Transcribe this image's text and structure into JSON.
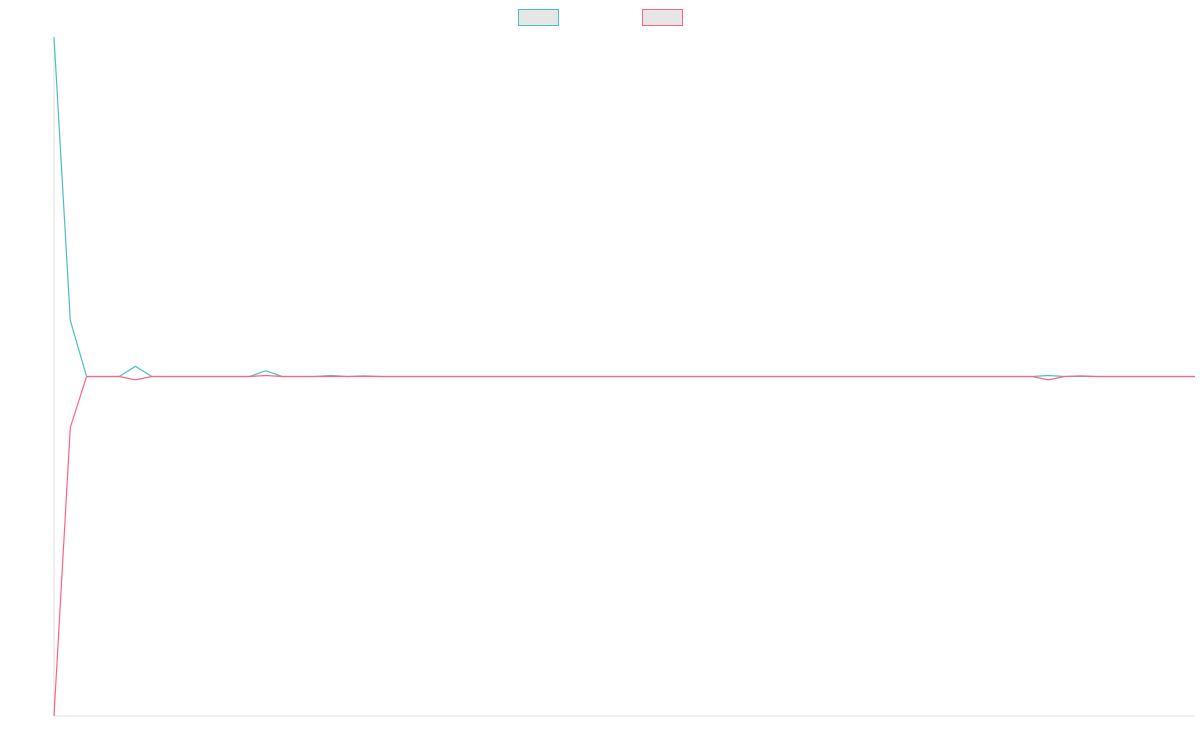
{
  "chart_data": {
    "type": "line",
    "title": "",
    "xlabel": "",
    "ylabel": "",
    "x": [
      0,
      1,
      2,
      3,
      4,
      5,
      6,
      7,
      8,
      9,
      10,
      11,
      12,
      13,
      14,
      15,
      16,
      17,
      18,
      19,
      20,
      21,
      22,
      23,
      24,
      25,
      26,
      27,
      28,
      29,
      30,
      31,
      32,
      33,
      34,
      35,
      36,
      37,
      38,
      39,
      40,
      41,
      42,
      43,
      44,
      45,
      46,
      47,
      48,
      49,
      50,
      51,
      52,
      53,
      54,
      55,
      56,
      57,
      58,
      59,
      60,
      61,
      62,
      63,
      64,
      65,
      66,
      67,
      68,
      69,
      70
    ],
    "series": [
      {
        "name": "",
        "color": "#4bc0c0",
        "values": [
          1.0,
          0.165,
          0,
          0,
          0,
          0.03,
          0,
          0,
          0,
          0,
          0,
          0,
          0,
          0.017,
          0,
          0,
          0,
          0.003,
          0,
          0.002,
          0,
          0,
          0,
          0,
          0,
          0,
          0,
          0,
          0,
          0,
          0,
          0,
          0,
          0,
          0,
          0,
          0,
          0,
          0,
          0,
          0,
          0,
          0,
          0,
          0,
          0,
          0,
          0,
          0,
          0,
          0,
          0,
          0,
          0,
          0,
          0,
          0,
          0,
          0,
          0,
          0,
          0.003,
          0,
          0,
          0,
          0,
          0,
          0,
          0,
          0,
          0
        ]
      },
      {
        "name": "",
        "color": "#ff6384",
        "values": [
          -1.0,
          -0.15,
          0,
          0,
          0,
          -0.01,
          0,
          0,
          0,
          0,
          0,
          0,
          0,
          0.003,
          0,
          0,
          0,
          0,
          0,
          0,
          0,
          0,
          0,
          0,
          0,
          0,
          0,
          0,
          0,
          0,
          0,
          0,
          0,
          0,
          0,
          0,
          0,
          0,
          0,
          0,
          0,
          0,
          0,
          0,
          0,
          0,
          0,
          0,
          0,
          0,
          0,
          0,
          0,
          0,
          0,
          0,
          0,
          0,
          0,
          0,
          0,
          -0.01,
          0,
          0.002,
          0,
          0,
          0,
          0,
          0,
          0,
          0
        ]
      }
    ],
    "xlim": [
      0,
      70
    ],
    "ylim": [
      -1.0,
      1.0
    ],
    "grid": false,
    "legend": "top-center",
    "legend_fill": "#e6e6e6",
    "axis_color": "#e0e0e0"
  }
}
